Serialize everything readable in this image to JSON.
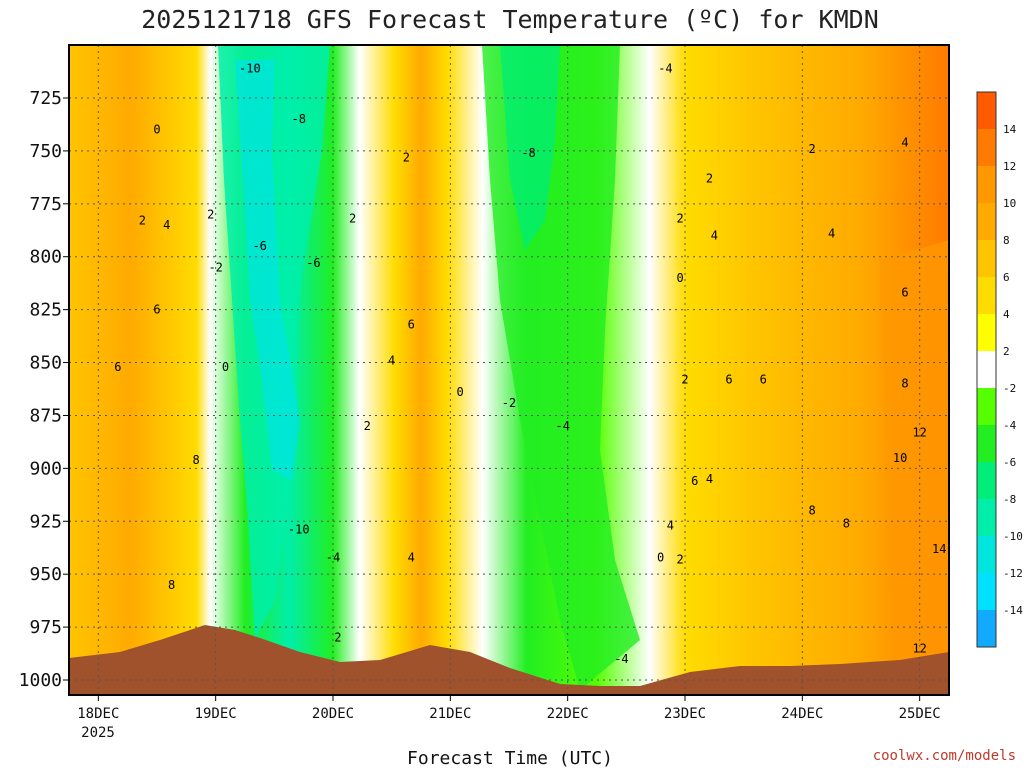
{
  "chart_data": {
    "type": "heatmap",
    "title": "2025121718 GFS Forecast Temperature (ºC) for KMDN",
    "xlabel": "Forecast Time (UTC)",
    "ylabel": "",
    "x_ticks": [
      "18DEC",
      "19DEC",
      "20DEC",
      "21DEC",
      "22DEC",
      "23DEC",
      "24DEC",
      "25DEC"
    ],
    "x_tick_sub": "2025",
    "xlim": [
      "2025-12-17T18:00",
      "2025-12-25T06:00"
    ],
    "y_ticks": [
      725,
      750,
      775,
      800,
      825,
      850,
      875,
      900,
      925,
      950,
      975,
      1000
    ],
    "ylim": [
      1000,
      700
    ],
    "y_scale": "pressure (hPa), inverted",
    "grid": true,
    "colorbar": {
      "position": "right",
      "levels": [
        14,
        12,
        10,
        8,
        6,
        4,
        2,
        -2,
        -4,
        -6,
        -8,
        -10,
        -12,
        -14
      ],
      "colors": [
        "#ff5a00",
        "#ff7a00",
        "#ff9800",
        "#ffaa00",
        "#ffc400",
        "#ffdc00",
        "#ffff00",
        "#ffffff",
        "#55ff00",
        "#22ee22",
        "#00ee77",
        "#00eeaa",
        "#00e5dd",
        "#00e0ff",
        "#11aaff"
      ]
    },
    "contour_labels": [
      {
        "time": "2025-12-18T12:00",
        "p": 740,
        "text": "0"
      },
      {
        "time": "2025-12-18T09:00",
        "p": 783,
        "text": "2"
      },
      {
        "time": "2025-12-18T14:00",
        "p": 785,
        "text": "4"
      },
      {
        "time": "2025-12-18T23:00",
        "p": 780,
        "text": "2"
      },
      {
        "time": "2025-12-18T12:00",
        "p": 825,
        "text": "6"
      },
      {
        "time": "2025-12-18T04:00",
        "p": 852,
        "text": "6"
      },
      {
        "time": "2025-12-18T20:00",
        "p": 896,
        "text": "8"
      },
      {
        "time": "2025-12-18T15:00",
        "p": 955,
        "text": "8"
      },
      {
        "time": "2025-12-19T00:00",
        "p": 805,
        "text": "-2"
      },
      {
        "time": "2025-12-19T02:00",
        "p": 852,
        "text": "0"
      },
      {
        "time": "2025-12-19T09:00",
        "p": 795,
        "text": "-6"
      },
      {
        "time": "2025-12-19T07:00",
        "p": 711,
        "text": "-10"
      },
      {
        "time": "2025-12-19T17:00",
        "p": 735,
        "text": "-8"
      },
      {
        "time": "2025-12-19T20:00",
        "p": 803,
        "text": "-6"
      },
      {
        "time": "2025-12-19T17:00",
        "p": 929,
        "text": "-10"
      },
      {
        "time": "2025-12-20T00:00",
        "p": 942,
        "text": "-4"
      },
      {
        "time": "2025-12-20T01:00",
        "p": 980,
        "text": "2"
      },
      {
        "time": "2025-12-20T04:00",
        "p": 782,
        "text": "2"
      },
      {
        "time": "2025-12-20T12:00",
        "p": 849,
        "text": "4"
      },
      {
        "time": "2025-12-20T15:00",
        "p": 753,
        "text": "2"
      },
      {
        "time": "2025-12-20T07:00",
        "p": 880,
        "text": "2"
      },
      {
        "time": "2025-12-20T16:00",
        "p": 832,
        "text": "6"
      },
      {
        "time": "2025-12-20T16:00",
        "p": 942,
        "text": "4"
      },
      {
        "time": "2025-12-21T02:00",
        "p": 864,
        "text": "0"
      },
      {
        "time": "2025-12-21T12:00",
        "p": 869,
        "text": "-2"
      },
      {
        "time": "2025-12-21T16:00",
        "p": 751,
        "text": "-8"
      },
      {
        "time": "2025-12-21T23:00",
        "p": 880,
        "text": "-4"
      },
      {
        "time": "2025-12-22T11:00",
        "p": 990,
        "text": "-4"
      },
      {
        "time": "2025-12-22T19:00",
        "p": 942,
        "text": "0"
      },
      {
        "time": "2025-12-22T21:00",
        "p": 927,
        "text": "4"
      },
      {
        "time": "2025-12-22T23:00",
        "p": 943,
        "text": "2"
      },
      {
        "time": "2025-12-22T20:00",
        "p": 711,
        "text": "-4"
      },
      {
        "time": "2025-12-22T23:00",
        "p": 782,
        "text": "2"
      },
      {
        "time": "2025-12-22T23:00",
        "p": 810,
        "text": "0"
      },
      {
        "time": "2025-12-23T06:00",
        "p": 790,
        "text": "4"
      },
      {
        "time": "2025-12-23T05:00",
        "p": 763,
        "text": "2"
      },
      {
        "time": "2025-12-23T00:00",
        "p": 858,
        "text": "2"
      },
      {
        "time": "2025-12-23T05:00",
        "p": 905,
        "text": "4"
      },
      {
        "time": "2025-12-23T09:00",
        "p": 858,
        "text": "6"
      },
      {
        "time": "2025-12-23T02:00",
        "p": 906,
        "text": "6"
      },
      {
        "time": "2025-12-24T02:00",
        "p": 749,
        "text": "2"
      },
      {
        "time": "2025-12-24T06:00",
        "p": 789,
        "text": "4"
      },
      {
        "time": "2025-12-23T16:00",
        "p": 858,
        "text": "6"
      },
      {
        "time": "2025-12-24T02:00",
        "p": 920,
        "text": "8"
      },
      {
        "time": "2025-12-24T09:00",
        "p": 926,
        "text": "8"
      },
      {
        "time": "2025-12-24T21:00",
        "p": 746,
        "text": "4"
      },
      {
        "time": "2025-12-24T21:00",
        "p": 817,
        "text": "6"
      },
      {
        "time": "2025-12-24T21:00",
        "p": 860,
        "text": "8"
      },
      {
        "time": "2025-12-24T20:00",
        "p": 895,
        "text": "10"
      },
      {
        "time": "2025-12-25T00:00",
        "p": 883,
        "text": "12"
      },
      {
        "time": "2025-12-25T04:00",
        "p": 938,
        "text": "14"
      },
      {
        "time": "2025-12-25T00:00",
        "p": 985,
        "text": "12"
      }
    ]
  },
  "credit": "coolwx.com/models"
}
